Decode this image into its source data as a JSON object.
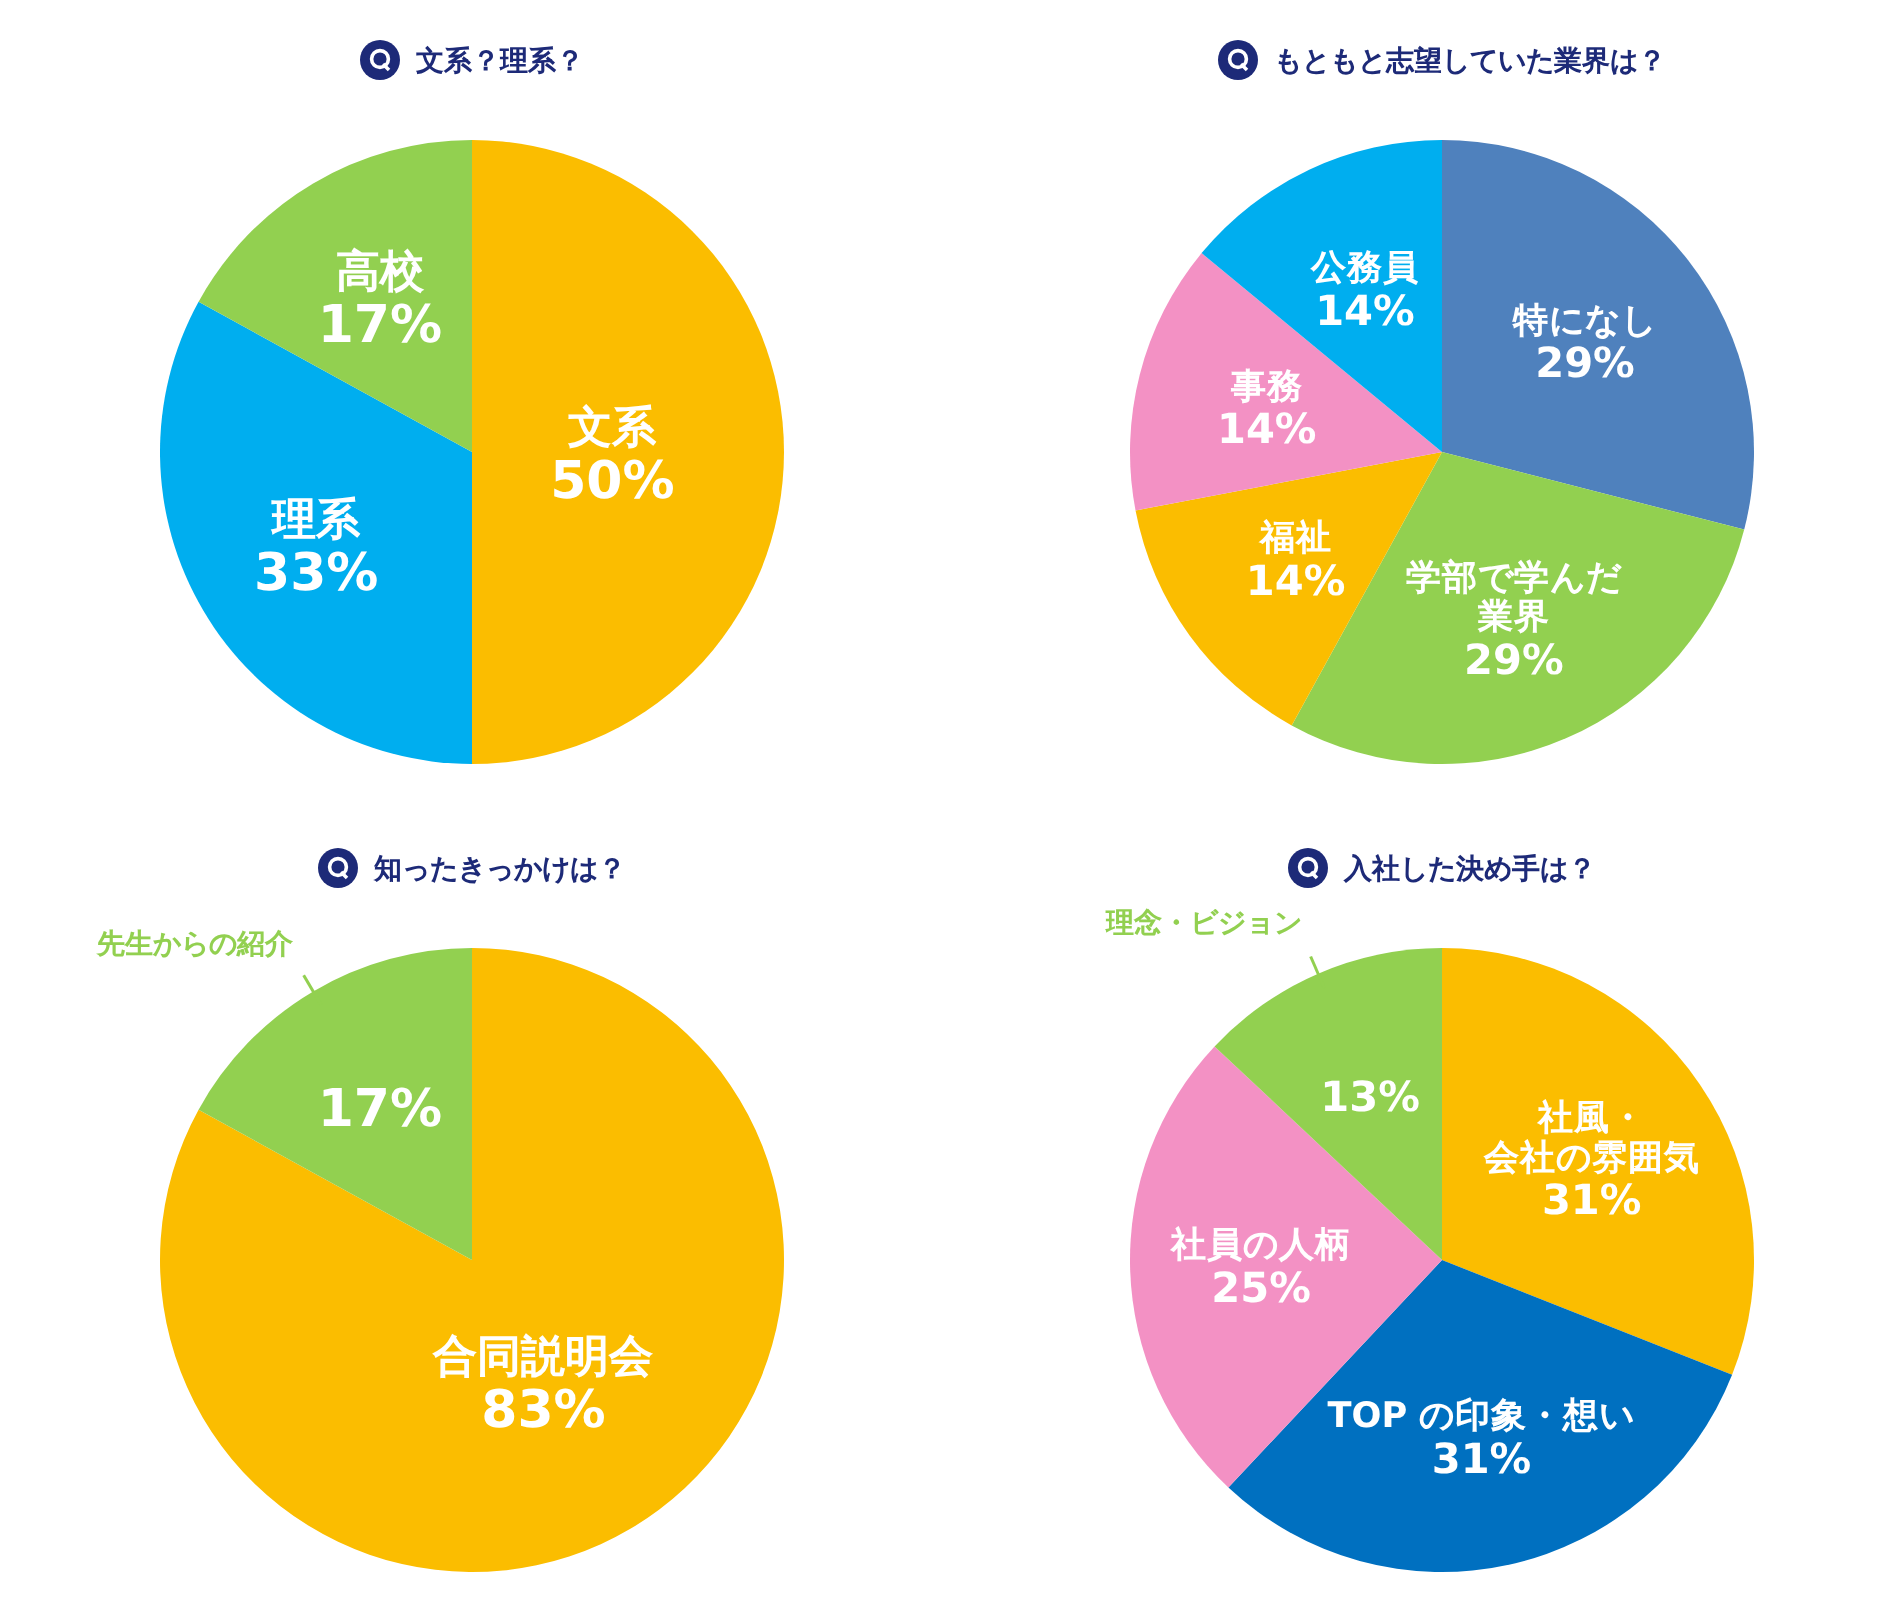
{
  "chart_data": [
    {
      "type": "pie",
      "title": "文系？理系？",
      "categories": [
        "文系",
        "理系",
        "高校"
      ],
      "values": [
        50,
        33,
        17
      ],
      "colors": [
        "#fbbd00",
        "#00aeef",
        "#92d050"
      ],
      "value_labels": [
        "50%",
        "33%",
        "17%"
      ]
    },
    {
      "type": "pie",
      "title": "もともと志望していた業界は？",
      "categories": [
        "特になし",
        "学部で学んだ業界",
        "福祉",
        "事務",
        "公務員"
      ],
      "values": [
        29,
        29,
        14,
        14,
        14
      ],
      "colors": [
        "#4f81bd",
        "#92d050",
        "#fbbd00",
        "#f391c4",
        "#00aeef"
      ],
      "value_labels": [
        "29%",
        "29%",
        "14%",
        "14%",
        "14%"
      ]
    },
    {
      "type": "pie",
      "title": "知ったきっかけは？",
      "categories": [
        "合同説明会",
        "先生からの紹介"
      ],
      "values": [
        83,
        17
      ],
      "colors": [
        "#fbbd00",
        "#92d050"
      ],
      "value_labels": [
        "83%",
        "17%"
      ]
    },
    {
      "type": "pie",
      "title": "入社した決め手は？",
      "categories": [
        "社風・会社の雰囲気",
        "TOP の印象・想い",
        "社員の人柄",
        "理念・ビジョン"
      ],
      "values": [
        31,
        31,
        25,
        13
      ],
      "colors": [
        "#fbbd00",
        "#0070c0",
        "#f391c4",
        "#92d050"
      ],
      "value_labels": [
        "31%",
        "31%",
        "25%",
        "13%"
      ]
    }
  ]
}
